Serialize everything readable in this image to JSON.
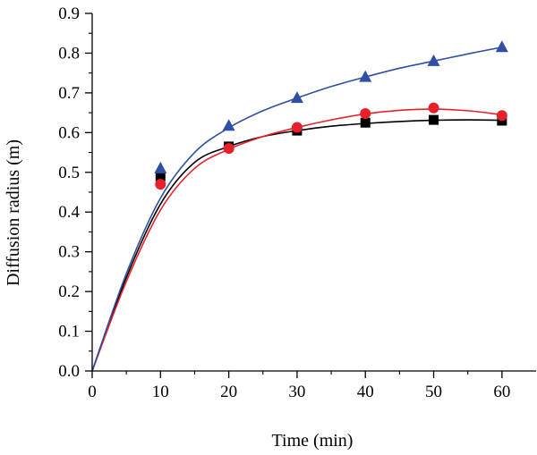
{
  "chart_data": {
    "type": "scatter",
    "title": "",
    "xlabel": "Time (min)",
    "ylabel": "Diffusion radius (m)",
    "xlim": [
      0,
      65
    ],
    "ylim": [
      0,
      0.9
    ],
    "xticks": [
      0,
      10,
      20,
      30,
      40,
      50,
      60
    ],
    "yticks": [
      0.0,
      0.1,
      0.2,
      0.3,
      0.4,
      0.5,
      0.6,
      0.7,
      0.8,
      0.9
    ],
    "xtick_labels": [
      "0",
      "10",
      "20",
      "30",
      "40",
      "50",
      "60"
    ],
    "ytick_labels": [
      "0.0",
      "0.1",
      "0.2",
      "0.3",
      "0.4",
      "0.5",
      "0.6",
      "0.7",
      "0.8",
      "0.9"
    ],
    "grid": false,
    "legend": "none",
    "series": [
      {
        "marker": "square",
        "color": "#000000",
        "x": [
          10,
          20,
          30,
          40,
          50,
          60
        ],
        "y": [
          0.49,
          0.565,
          0.605,
          0.625,
          0.632,
          0.63
        ],
        "fit_x": [
          0,
          5,
          10,
          15,
          20,
          25,
          30,
          35,
          40,
          45,
          50,
          55,
          60
        ],
        "fit_y": [
          0,
          0.235,
          0.42,
          0.525,
          0.565,
          0.59,
          0.605,
          0.616,
          0.623,
          0.628,
          0.631,
          0.632,
          0.631
        ]
      },
      {
        "marker": "circle",
        "color": "#e8202a",
        "x": [
          10,
          20,
          30,
          40,
          50,
          60
        ],
        "y": [
          0.47,
          0.56,
          0.613,
          0.648,
          0.662,
          0.643
        ],
        "fit_x": [
          0,
          5,
          10,
          15,
          20,
          25,
          30,
          35,
          40,
          45,
          50,
          55,
          60
        ],
        "fit_y": [
          0,
          0.225,
          0.405,
          0.51,
          0.558,
          0.59,
          0.613,
          0.632,
          0.647,
          0.656,
          0.659,
          0.655,
          0.645
        ]
      },
      {
        "marker": "triangle",
        "color": "#2e4fa3",
        "x": [
          10,
          20,
          30,
          40,
          50,
          60
        ],
        "y": [
          0.51,
          0.617,
          0.687,
          0.74,
          0.78,
          0.815
        ],
        "fit_x": [
          0,
          5,
          10,
          15,
          20,
          25,
          30,
          35,
          40,
          45,
          50,
          55,
          60
        ],
        "fit_y": [
          0,
          0.245,
          0.435,
          0.55,
          0.612,
          0.655,
          0.687,
          0.716,
          0.74,
          0.762,
          0.78,
          0.798,
          0.815
        ]
      }
    ]
  }
}
